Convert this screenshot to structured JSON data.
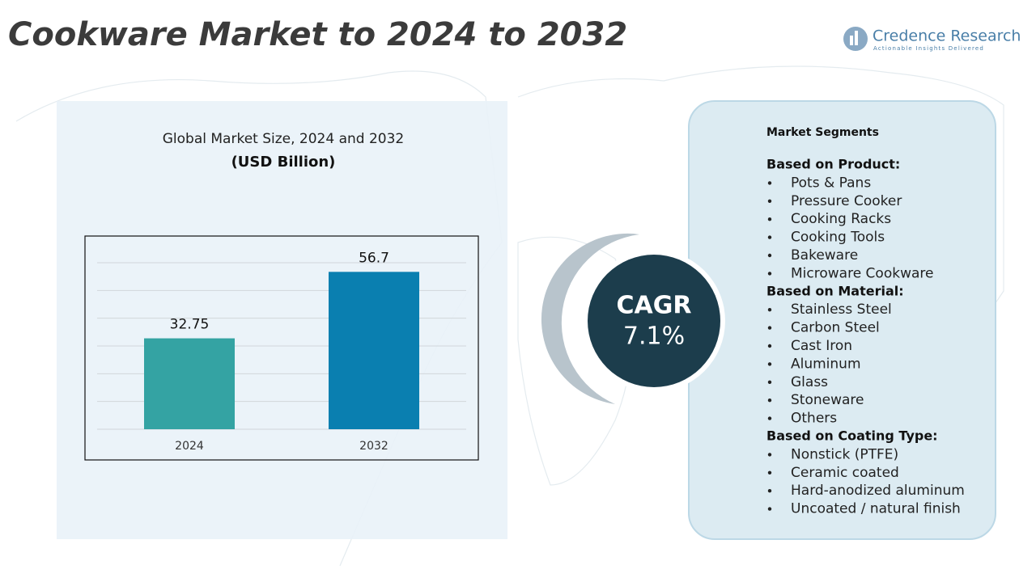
{
  "header": {
    "title": "Cookware Market to 2024 to 2032",
    "brand": "Credence Research",
    "tagline": "Actionable Insights Delivered"
  },
  "chart_data": {
    "type": "bar",
    "title": "Global Market Size, 2024 and 2032",
    "subtitle": "(USD Billion)",
    "categories": [
      "2024",
      "2032"
    ],
    "values": [
      32.75,
      56.7
    ],
    "colors": [
      "#34a3a3",
      "#0a7fb0"
    ],
    "ylim": [
      0,
      60
    ],
    "yticks": [
      0,
      10,
      20,
      30,
      40,
      50,
      60
    ],
    "grid": true
  },
  "cagr": {
    "label": "CAGR",
    "value": "7.1%"
  },
  "segments": {
    "title": "Market Segments",
    "groups": [
      {
        "heading": "Based on Product:",
        "items": [
          "Pots & Pans",
          "Pressure Cooker",
          "Cooking Racks",
          "Cooking Tools",
          "Bakeware",
          "Microware Cookware"
        ]
      },
      {
        "heading": "Based on Material:",
        "items": [
          "Stainless Steel",
          "Carbon Steel",
          "Cast Iron",
          "Aluminum",
          "Glass",
          "Stoneware",
          "Others"
        ]
      },
      {
        "heading": "Based on Coating Type:",
        "items": [
          "Nonstick (PTFE)",
          "Ceramic coated",
          "Hard-anodized aluminum",
          "Uncoated / natural finish"
        ]
      }
    ]
  }
}
